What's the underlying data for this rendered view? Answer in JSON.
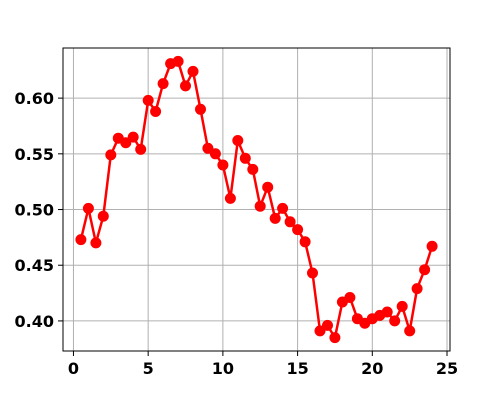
{
  "chart_data": {
    "type": "line",
    "title": "",
    "xlabel": "",
    "ylabel": "",
    "xlim": [
      -0.7,
      25.2
    ],
    "ylim": [
      0.373,
      0.645
    ],
    "xticks": [
      0,
      5,
      10,
      15,
      20,
      25
    ],
    "yticks": [
      0.4,
      0.45,
      0.5,
      0.55,
      0.6
    ],
    "xtick_labels": [
      "0",
      "5",
      "10",
      "15",
      "20",
      "25"
    ],
    "ytick_labels": [
      "0.40",
      "0.45",
      "0.50",
      "0.55",
      "0.60"
    ],
    "grid": true,
    "legend": false,
    "series": [
      {
        "color": "#ff0000",
        "marker": "circle",
        "x": [
          0.5,
          1.0,
          1.5,
          2.0,
          2.5,
          3.0,
          3.5,
          4.0,
          4.5,
          5.0,
          5.5,
          6.0,
          6.5,
          7.0,
          7.5,
          8.0,
          8.5,
          9.0,
          9.5,
          10.0,
          10.5,
          11.0,
          11.5,
          12.0,
          12.5,
          13.0,
          13.5,
          14.0,
          14.5,
          15.0,
          15.5,
          16.0,
          16.5,
          17.0,
          17.5,
          18.0,
          18.5,
          19.0,
          19.5,
          20.0,
          20.5,
          21.0,
          21.5,
          22.0,
          22.5,
          23.0,
          23.5,
          24.0
        ],
        "y": [
          0.473,
          0.501,
          0.47,
          0.494,
          0.549,
          0.564,
          0.56,
          0.565,
          0.554,
          0.598,
          0.588,
          0.613,
          0.631,
          0.633,
          0.611,
          0.624,
          0.59,
          0.555,
          0.55,
          0.54,
          0.51,
          0.562,
          0.546,
          0.536,
          0.503,
          0.52,
          0.492,
          0.501,
          0.489,
          0.482,
          0.471,
          0.443,
          0.391,
          0.396,
          0.385,
          0.417,
          0.421,
          0.402,
          0.398,
          0.402,
          0.405,
          0.408,
          0.4,
          0.413,
          0.391,
          0.429,
          0.446,
          0.467
        ]
      }
    ]
  }
}
